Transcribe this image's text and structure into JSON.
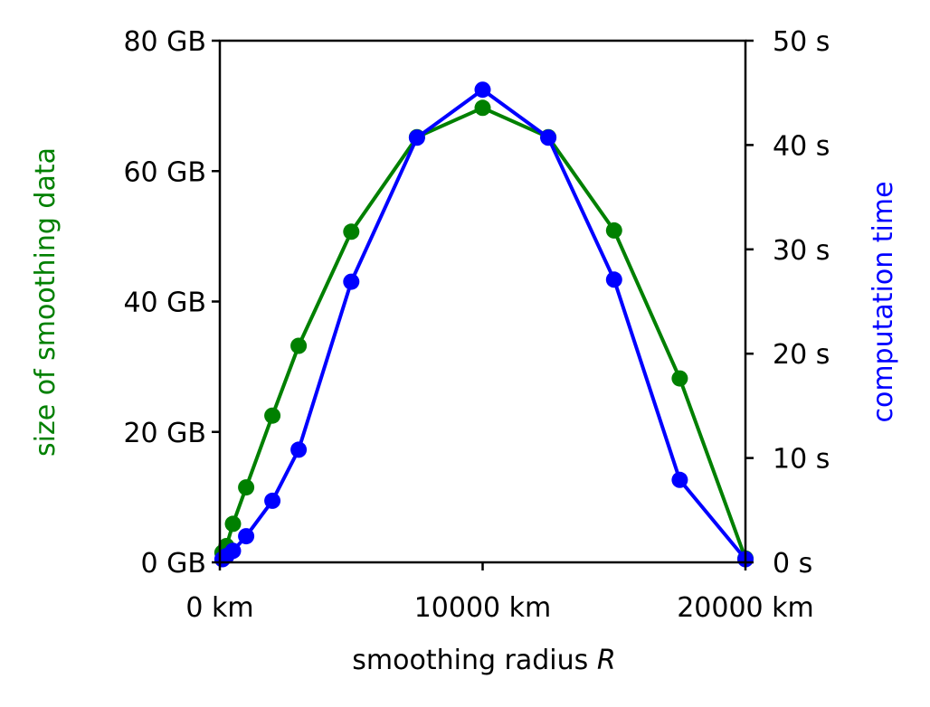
{
  "chart_data": {
    "type": "line",
    "xlabel": "smoothing radius",
    "xlabel_var": "R",
    "ylabel_left": "size of smoothing data",
    "ylabel_right": "computation time",
    "xlim": [
      0,
      20000
    ],
    "ylim_left": [
      0,
      80
    ],
    "ylim_right": [
      0,
      50
    ],
    "x_ticks": [
      0,
      10000,
      20000
    ],
    "x_tick_labels": [
      "0 km",
      "10000 km",
      "20000 km"
    ],
    "y_left_ticks": [
      0,
      20,
      40,
      60,
      80
    ],
    "y_left_tick_labels": [
      "0 GB",
      "20 GB",
      "40 GB",
      "60 GB",
      "80 GB"
    ],
    "y_right_ticks": [
      0,
      10,
      20,
      30,
      40,
      50
    ],
    "y_right_tick_labels": [
      "0 s",
      "10 s",
      "20 s",
      "30 s",
      "40 s",
      "50 s"
    ],
    "grid": false,
    "colors": {
      "left_series": "#008000",
      "right_series": "#0000ff"
    },
    "series": [
      {
        "axis": "left",
        "x": [
          100,
          250,
          500,
          1000,
          2000,
          3000,
          5000,
          7500,
          10000,
          12500,
          15000,
          17500,
          20000
        ],
        "values": [
          1.5,
          2.5,
          5.9,
          11.5,
          22.5,
          33.2,
          50.7,
          65.2,
          69.7,
          65.2,
          50.9,
          28.2,
          0.6
        ]
      },
      {
        "axis": "right",
        "x": [
          100,
          250,
          500,
          1000,
          2000,
          3000,
          5000,
          7500,
          10000,
          12500,
          15000,
          17500,
          20000
        ],
        "values": [
          0.3,
          0.6,
          1.1,
          2.5,
          5.9,
          10.8,
          26.9,
          40.7,
          45.3,
          40.7,
          27.1,
          7.9,
          0.3
        ]
      }
    ]
  }
}
